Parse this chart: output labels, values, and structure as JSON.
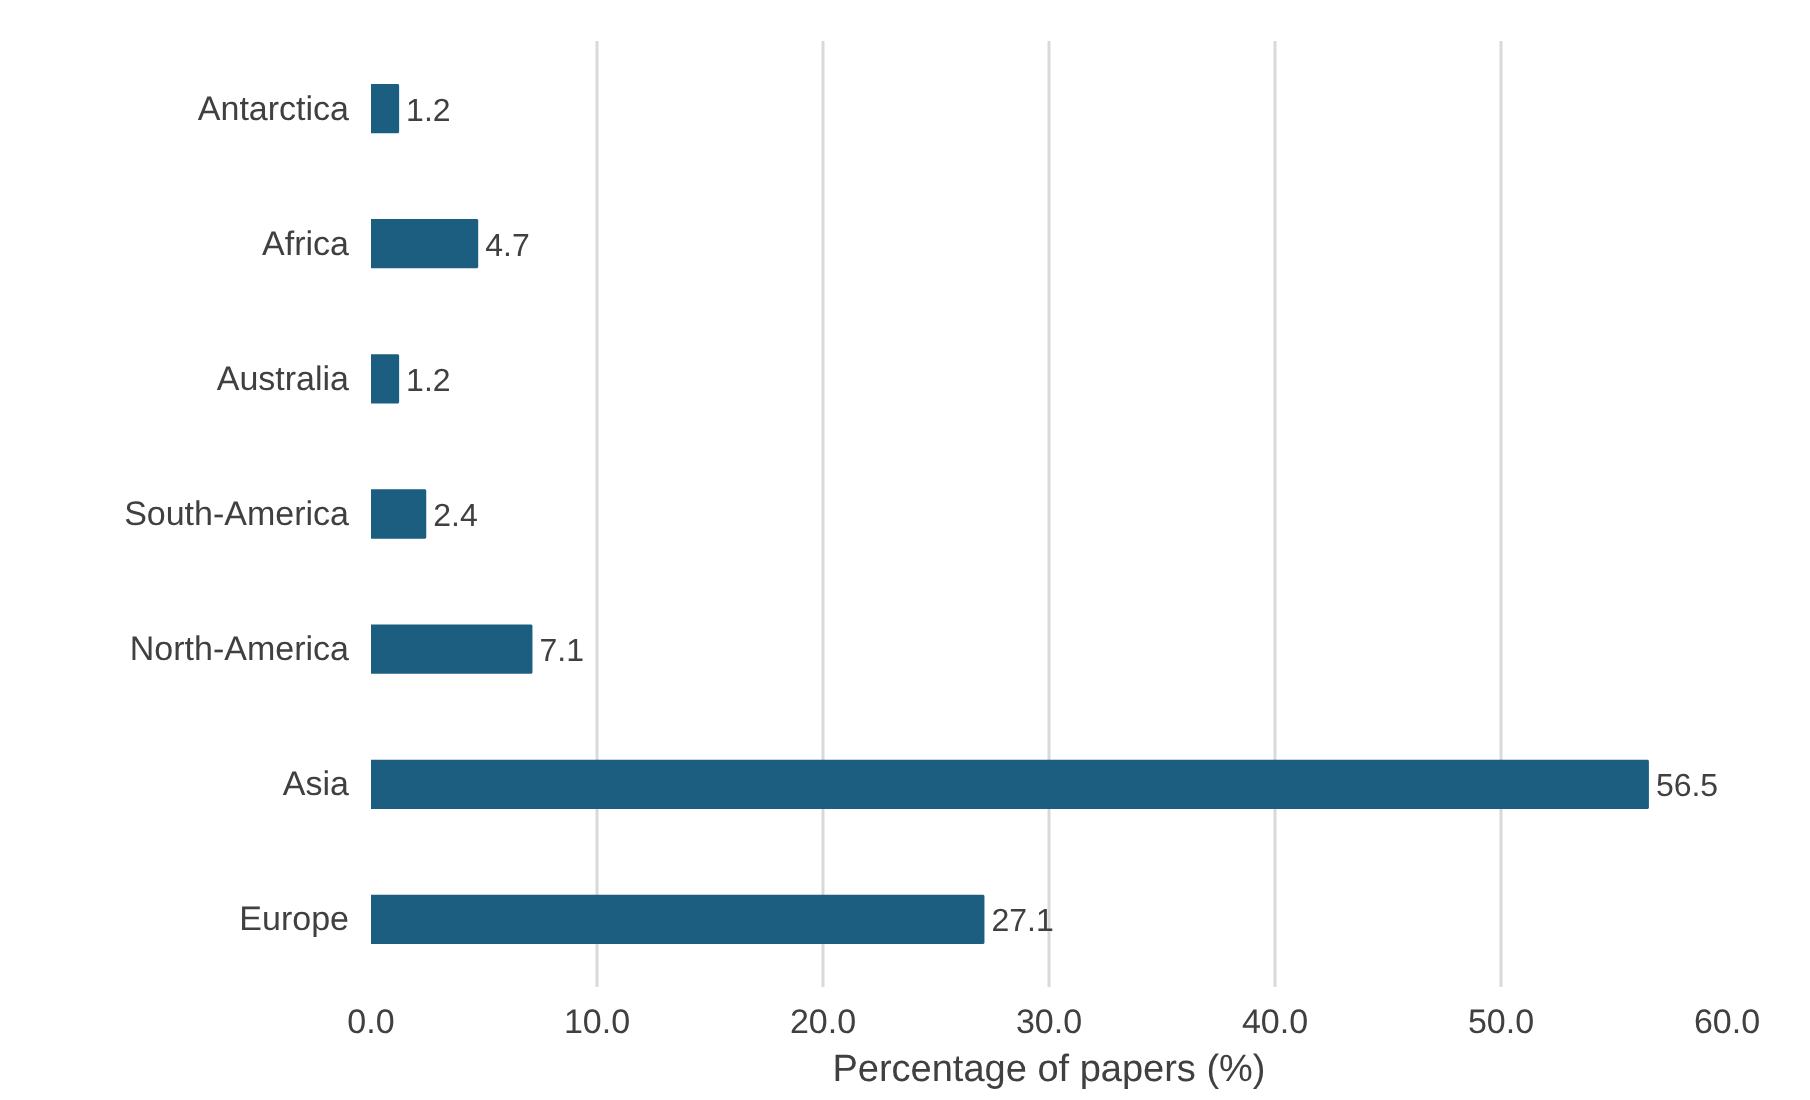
{
  "chart_data": {
    "type": "bar",
    "orientation": "horizontal",
    "xlabel": "Percentage of papers (%)",
    "categories": [
      "Antarctica",
      "Africa",
      "Australia",
      "South-America",
      "North-America",
      "Asia",
      "Europe"
    ],
    "values": [
      1.2,
      4.7,
      1.2,
      2.4,
      7.1,
      56.5,
      27.1
    ],
    "color": "#1b5e80",
    "xlim": [
      0,
      60
    ],
    "xticks": [
      {
        "value": 0,
        "label": "0.0"
      },
      {
        "value": 10,
        "label": "10.0"
      },
      {
        "value": 20,
        "label": "20.0"
      },
      {
        "value": 30,
        "label": "30.0"
      },
      {
        "value": 40,
        "label": "40.0"
      },
      {
        "value": 50,
        "label": "50.0"
      },
      {
        "value": 60,
        "label": "60.0"
      }
    ],
    "grid": "x",
    "data_labels": true
  }
}
